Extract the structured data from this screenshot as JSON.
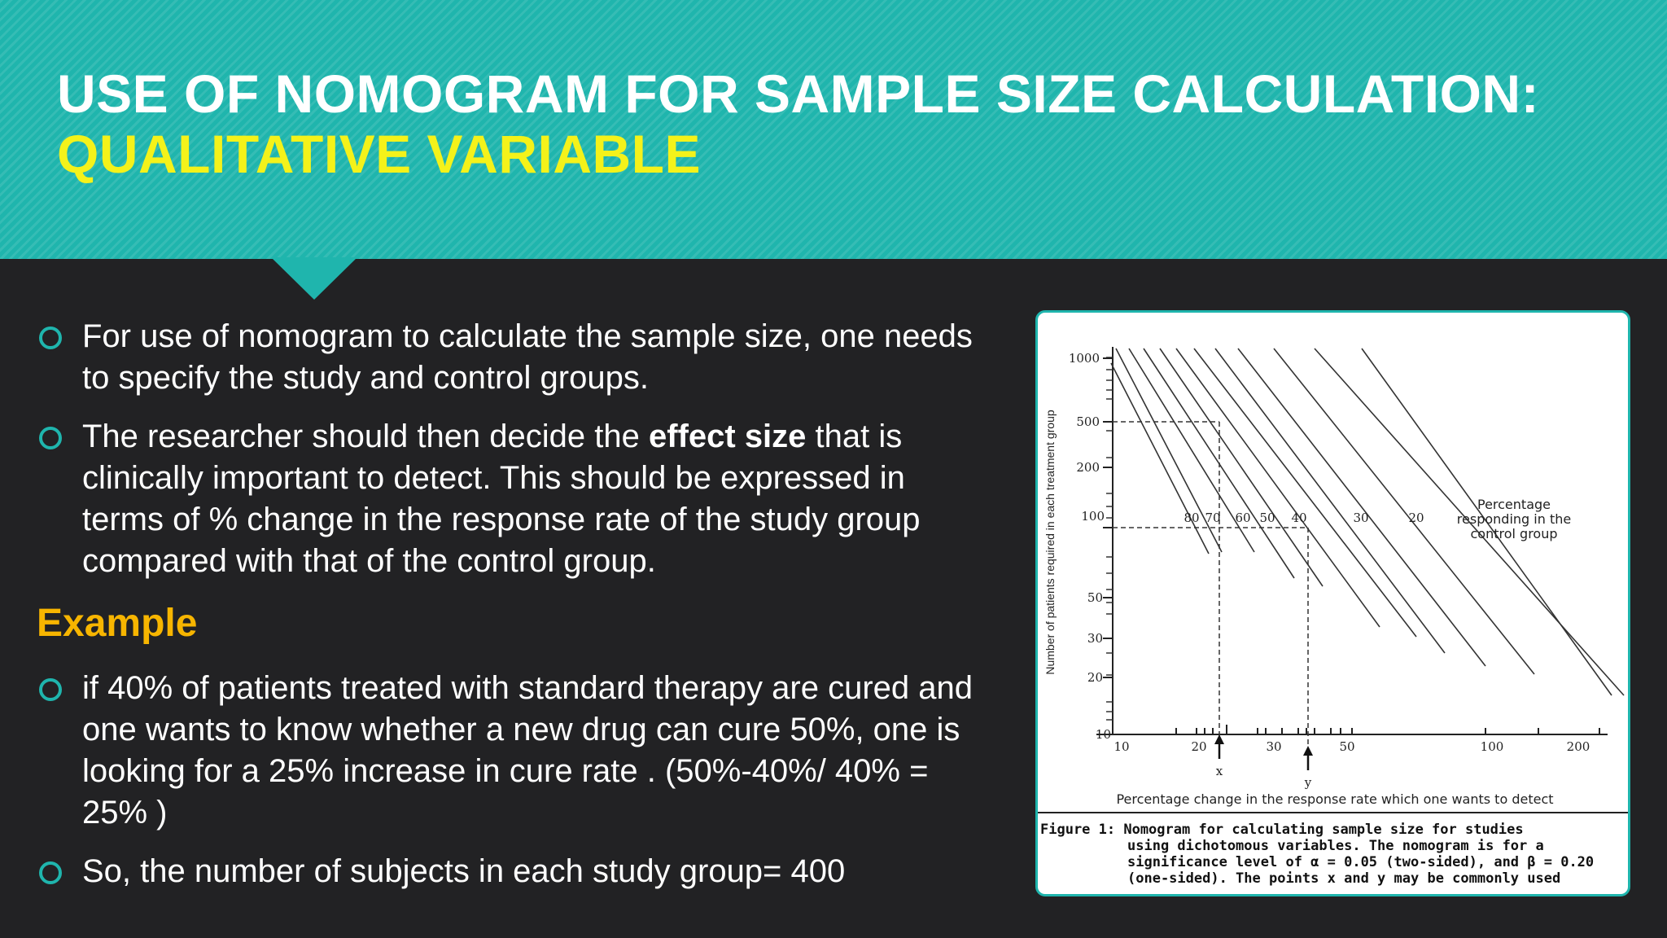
{
  "title": {
    "line1": "USE OF NOMOGRAM FOR SAMPLE SIZE CALCULATION:",
    "line2": "QUALITATIVE VARIABLE"
  },
  "bullets": {
    "b1": "For use of nomogram to calculate the sample size, one needs to specify the study and control groups.",
    "b2_pre": "The researcher should then decide the ",
    "b2_bold": "effect size",
    "b2_post": " that is clinically important to detect. This should be expressed in terms of % change in the response rate of the study group compared with that of the control group.",
    "example_heading": "Example",
    "b3": "if 40% of patients treated with standard therapy are cured and one wants to know whether a new drug can cure 50%, one is looking for a 25% increase in cure rate . (50%-40%/ 40% = 25% )",
    "b4": "So, the number of subjects in each study group= 400"
  },
  "colors": {
    "header": "#1fb5ad",
    "title_line2": "#f4f21a",
    "example": "#f7b500",
    "background": "#222224"
  },
  "figure": {
    "y_axis_label": "Number of patients required in each treatment group",
    "x_axis_label": "Percentage change in the response rate which one wants to detect",
    "legend": [
      "Percentage",
      "responding in the",
      "control group"
    ],
    "y_ticks": [
      "1000",
      "500",
      "200",
      "100",
      "50",
      "30",
      "20",
      "10"
    ],
    "x_ticks": [
      "10",
      "20",
      "30",
      "50",
      "100",
      "200"
    ],
    "line_labels": [
      "80",
      "70",
      "60",
      "50",
      "40",
      "30",
      "20"
    ],
    "marker_x": "x",
    "marker_y": "y",
    "caption_line1": "Figure 1: Nomogram for calculating sample size for studies",
    "caption_line2": "using dichotomous variables. The nomogram is for a",
    "caption_line3": "significance level of α = 0.05 (two-sided), and β = 0.20",
    "caption_line4": "(one-sided). The points x and y may be commonly used"
  }
}
